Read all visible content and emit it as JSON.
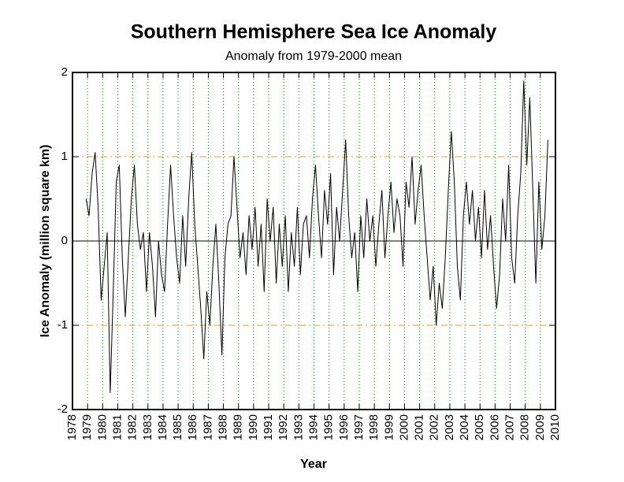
{
  "chart_data": {
    "type": "line",
    "title": "Southern Hemisphere Sea Ice Anomaly",
    "subtitle": "Anomaly from 1979-2000 mean",
    "xlabel": "Year",
    "ylabel": "Ice Anomaly (million square km)",
    "xlim": [
      1978,
      2010
    ],
    "xticks": [
      1978,
      1979,
      1980,
      1981,
      1982,
      1983,
      1984,
      1985,
      1986,
      1987,
      1988,
      1989,
      1990,
      1991,
      1992,
      1993,
      1994,
      1995,
      1996,
      1997,
      1998,
      1999,
      2000,
      2001,
      2002,
      2003,
      2004,
      2005,
      2006,
      2007,
      2008,
      2009,
      2010
    ],
    "ylim": [
      -2,
      2
    ],
    "yticks": [
      -2,
      -1,
      0,
      1,
      2
    ],
    "xgrid": true,
    "xgrid_color": "#008000",
    "ygrid": true,
    "ygrid_color": "#e0a020",
    "zero_line": true,
    "series": [
      {
        "color": "#000000",
        "x": [
          1978.9,
          1979.1,
          1979.3,
          1979.5,
          1979.7,
          1979.9,
          1980.1,
          1980.3,
          1980.5,
          1980.7,
          1980.9,
          1981.1,
          1981.3,
          1981.5,
          1981.7,
          1981.9,
          1982.1,
          1982.3,
          1982.5,
          1982.7,
          1982.9,
          1983.1,
          1983.3,
          1983.5,
          1983.7,
          1983.9,
          1984.1,
          1984.3,
          1984.5,
          1984.7,
          1984.9,
          1985.1,
          1985.3,
          1985.5,
          1985.7,
          1985.9,
          1986.1,
          1986.3,
          1986.5,
          1986.7,
          1986.9,
          1987.1,
          1987.3,
          1987.5,
          1987.7,
          1987.9,
          1988.1,
          1988.3,
          1988.5,
          1988.7,
          1988.9,
          1989.1,
          1989.3,
          1989.5,
          1989.7,
          1989.9,
          1990.1,
          1990.3,
          1990.5,
          1990.7,
          1990.9,
          1991.1,
          1991.3,
          1991.5,
          1991.7,
          1991.9,
          1992.1,
          1992.3,
          1992.5,
          1992.7,
          1992.9,
          1993.1,
          1993.3,
          1993.5,
          1993.7,
          1993.9,
          1994.1,
          1994.3,
          1994.5,
          1994.7,
          1994.9,
          1995.1,
          1995.3,
          1995.5,
          1995.7,
          1995.9,
          1996.1,
          1996.3,
          1996.5,
          1996.7,
          1996.9,
          1997.1,
          1997.3,
          1997.5,
          1997.7,
          1997.9,
          1998.1,
          1998.3,
          1998.5,
          1998.7,
          1998.9,
          1999.1,
          1999.3,
          1999.5,
          1999.7,
          1999.9,
          2000.1,
          2000.3,
          2000.5,
          2000.7,
          2000.9,
          2001.1,
          2001.3,
          2001.5,
          2001.7,
          2001.9,
          2002.1,
          2002.3,
          2002.5,
          2002.7,
          2002.9,
          2003.1,
          2003.3,
          2003.5,
          2003.7,
          2003.9,
          2004.1,
          2004.3,
          2004.5,
          2004.7,
          2004.9,
          2005.1,
          2005.3,
          2005.5,
          2005.7,
          2005.9,
          2006.1,
          2006.3,
          2006.5,
          2006.7,
          2006.9,
          2007.1,
          2007.3,
          2007.5,
          2007.7,
          2007.9,
          2008.1,
          2008.3,
          2008.5,
          2008.7,
          2008.9,
          2009.1,
          2009.3,
          2009.5
        ],
        "values": [
          0.5,
          0.3,
          0.8,
          1.05,
          0.4,
          -0.7,
          -0.3,
          0.1,
          -1.8,
          -0.6,
          0.7,
          0.9,
          -0.2,
          -0.9,
          -0.2,
          0.5,
          0.9,
          0.2,
          -0.1,
          0.1,
          -0.6,
          0.1,
          -0.3,
          -0.9,
          0.0,
          -0.4,
          -0.6,
          0.2,
          0.9,
          0.3,
          -0.2,
          -0.5,
          0.3,
          -0.3,
          0.5,
          1.05,
          0.2,
          -0.3,
          -0.8,
          -1.4,
          -0.6,
          -1.0,
          -0.3,
          0.2,
          -0.5,
          -1.35,
          -0.2,
          0.2,
          0.3,
          1.0,
          0.4,
          -0.2,
          0.1,
          -0.4,
          0.3,
          -0.1,
          0.4,
          -0.3,
          0.2,
          -0.6,
          0.5,
          0.0,
          0.4,
          -0.5,
          0.2,
          -0.3,
          0.3,
          -0.6,
          0.1,
          -0.3,
          0.4,
          -0.4,
          0.2,
          0.3,
          -0.2,
          0.5,
          0.9,
          0.3,
          -0.2,
          0.6,
          0.2,
          0.8,
          -0.4,
          0.4,
          0.0,
          0.6,
          1.2,
          0.3,
          -0.2,
          0.1,
          -0.6,
          0.3,
          -0.2,
          0.5,
          0.0,
          0.3,
          -0.3,
          0.2,
          0.6,
          -0.2,
          0.3,
          0.7,
          0.1,
          0.5,
          0.3,
          -0.3,
          0.7,
          0.4,
          1.0,
          0.2,
          0.6,
          0.9,
          0.3,
          -0.2,
          -0.7,
          -0.3,
          -1.0,
          -0.5,
          -0.8,
          -0.2,
          0.6,
          1.3,
          0.7,
          -0.3,
          -0.7,
          0.3,
          0.7,
          0.2,
          0.6,
          0.0,
          0.4,
          -0.2,
          0.6,
          -0.1,
          0.3,
          -0.3,
          -0.8,
          -0.4,
          0.5,
          0.0,
          0.9,
          -0.2,
          -0.5,
          0.3,
          0.8,
          1.9,
          0.9,
          1.7,
          0.6,
          -0.5,
          0.7,
          -0.1,
          0.3,
          1.2
        ]
      }
    ]
  }
}
